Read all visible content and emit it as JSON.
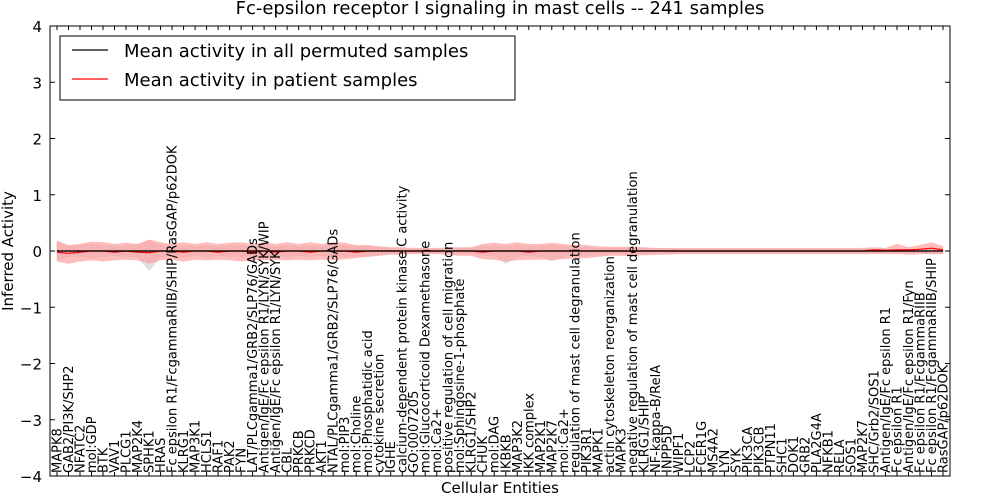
{
  "chart_data": {
    "type": "line",
    "title": "Fc-epsilon receptor I signaling in mast cells -- 241 samples",
    "xlabel": "Cellular Entities",
    "ylabel": "Inferred Activity",
    "ylim": [
      -4,
      4
    ],
    "yticks": [
      "−4",
      "−3",
      "−2",
      "−1",
      "0",
      "1",
      "2",
      "3",
      "4"
    ],
    "legend_placement": "top-left",
    "colors": {
      "all": "#000000",
      "patient": "#ff0000",
      "patient_band": "#ff9999",
      "all_band": "#c8c8c8"
    },
    "categories": [
      "MAPK8",
      "GAB2/PI3K/SHP2",
      "NFATC2",
      "mol:GDP",
      "BTK",
      "VAV1",
      "PLCG1",
      "MAP2K4",
      "SPHK1",
      "HRAS",
      "Fc epsilon R1/FcgammaRIIB/SHIP/RasGAP/p62DOK",
      "KLRG1",
      "MAP3K1",
      "HCLS1",
      "RAF1",
      "PAK2",
      "FYN",
      "LAT/PLCgamma1/GRB2/SLP76/GADs",
      "Antigen/IgE/Fc epsilon R1/LYN/SYK/WIP",
      "Antigen/IgE/Fc epsilon R1/LYN/SYK",
      "CBL",
      "PRKCB",
      "PRKCD",
      "AKT1",
      "NTAL/PLCgamma1/GRB2/SLP76/GADs",
      "mol:PIP3",
      "mol:Choline",
      "mol:Phosphatidic acid",
      "cytokine secretion",
      "IGHE",
      "calcium-dependent protein kinase C activity",
      "GO:0007205",
      "mol:Glucocorticoid Dexamethasone",
      "mol:Ca2+",
      "positive regulation of cell migration",
      "mol:Sphingosine-1-phosphate",
      "KLRG1/SHP2",
      "CHUK",
      "mol:DAG",
      "IKBKB",
      "MAP3K2",
      "IKK complex",
      "MAP2K1",
      "MAP2K7",
      "mol:Ca2+",
      "regulation of mast cell degranulation",
      "PIK3R1",
      "MAPK1",
      "actin cytoskeleton reorganization",
      "MAPK3",
      "negative regulation of mast cell degranulation",
      "KLRG1/SHIP",
      "NF-kappa-B/RelA",
      "INPP5D",
      "WIPF1",
      "LCP2",
      "FCER1G",
      "MS4A2",
      "LYN",
      "SYK",
      "PIK3CA",
      "PIK3CB",
      "PTPN11",
      "SHC1",
      "DOK1",
      "GRB2",
      "PLA2G4A",
      "NFKB1",
      "RELA",
      "SOS1",
      "MAP2K7",
      "SHC/Grb2/SOS1",
      "Antigen/IgE/Fc epsilon R1",
      "Fc epsilon R1",
      "Antigen/IgE/Fc epsilon R1/Fyn",
      "Fc epsilon R1/FcgammaRIIB",
      "Fc epsilon R1/FcgammaRIIB/SHIP",
      "RasGAP/p62DOK"
    ],
    "series": [
      {
        "name": "Mean activity in all permuted samples",
        "values": [
          0.0,
          0.0,
          0.0,
          0.0,
          0.0,
          0.0,
          0.0,
          0.0,
          0.0,
          0.0,
          0.0,
          0.0,
          0.0,
          0.0,
          0.0,
          0.0,
          0.0,
          0.0,
          0.0,
          0.0,
          0.0,
          0.0,
          0.0,
          0.0,
          0.0,
          0.0,
          0.0,
          0.0,
          0.0,
          0.0,
          0.0,
          0.0,
          0.0,
          0.0,
          0.0,
          0.0,
          0.0,
          0.0,
          0.0,
          0.0,
          0.0,
          0.0,
          0.0,
          0.0,
          0.0,
          0.0,
          0.0,
          0.0,
          0.0,
          0.0,
          0.0,
          0.0,
          0.0,
          0.0,
          0.0,
          0.0,
          0.0,
          0.0,
          0.0,
          0.0,
          0.0,
          0.0,
          0.0,
          0.0,
          0.0,
          0.0,
          0.0,
          0.0,
          0.0,
          0.0,
          0.0,
          0.0,
          0.0,
          0.0,
          0.0,
          0.0,
          0.0,
          0.0
        ],
        "upper": [
          0.15,
          0.08,
          0.1,
          0.12,
          0.1,
          0.08,
          0.1,
          0.1,
          0.18,
          0.1,
          0.08,
          0.1,
          0.08,
          0.1,
          0.08,
          0.1,
          0.1,
          0.08,
          0.1,
          0.08,
          0.1,
          0.08,
          0.1,
          0.08,
          0.1,
          0.1,
          0.08,
          0.08,
          0.06,
          0.04,
          0.04,
          0.03,
          0.03,
          0.03,
          0.04,
          0.05,
          0.05,
          0.08,
          0.08,
          0.08,
          0.1,
          0.08,
          0.08,
          0.1,
          0.08,
          0.06,
          0.06,
          0.05,
          0.05,
          0.05,
          0.05,
          0.05,
          0.04,
          0.04,
          0.03,
          0.03,
          0.03,
          0.03,
          0.03,
          0.03,
          0.03,
          0.03,
          0.03,
          0.03,
          0.03,
          0.03,
          0.03,
          0.03,
          0.03,
          0.03,
          0.03,
          0.03,
          0.03,
          0.03,
          0.03,
          0.03,
          0.04,
          0.04
        ],
        "lower": [
          -0.15,
          -0.1,
          -0.1,
          -0.12,
          -0.1,
          -0.08,
          -0.1,
          -0.1,
          -0.35,
          -0.1,
          -0.08,
          -0.1,
          -0.08,
          -0.1,
          -0.08,
          -0.1,
          -0.1,
          -0.08,
          -0.1,
          -0.08,
          -0.1,
          -0.08,
          -0.1,
          -0.08,
          -0.1,
          -0.1,
          -0.08,
          -0.08,
          -0.06,
          -0.04,
          -0.04,
          -0.03,
          -0.03,
          -0.03,
          -0.04,
          -0.05,
          -0.05,
          -0.08,
          -0.08,
          -0.22,
          -0.1,
          -0.08,
          -0.1,
          -0.18,
          -0.1,
          -0.08,
          -0.08,
          -0.06,
          -0.05,
          -0.05,
          -0.05,
          -0.05,
          -0.04,
          -0.04,
          -0.03,
          -0.03,
          -0.03,
          -0.03,
          -0.03,
          -0.03,
          -0.03,
          -0.03,
          -0.03,
          -0.03,
          -0.03,
          -0.03,
          -0.03,
          -0.03,
          -0.03,
          -0.03,
          -0.03,
          -0.03,
          -0.03,
          -0.03,
          -0.03,
          -0.03,
          -0.04,
          -0.04
        ]
      },
      {
        "name": "Mean activity in patient samples",
        "values": [
          -0.02,
          -0.04,
          -0.02,
          0.0,
          0.0,
          -0.02,
          0.0,
          -0.02,
          -0.03,
          0.0,
          0.0,
          -0.02,
          0.0,
          0.0,
          -0.02,
          0.0,
          0.0,
          -0.02,
          0.0,
          -0.02,
          0.0,
          0.0,
          -0.02,
          0.0,
          0.0,
          0.0,
          -0.02,
          0.0,
          0.0,
          0.0,
          0.0,
          0.0,
          0.0,
          0.0,
          0.0,
          0.0,
          0.0,
          -0.02,
          0.0,
          0.0,
          0.0,
          -0.02,
          0.0,
          0.0,
          0.0,
          0.0,
          0.0,
          0.0,
          0.0,
          0.0,
          0.0,
          0.0,
          0.0,
          0.0,
          0.0,
          0.0,
          0.0,
          0.0,
          0.0,
          0.0,
          0.0,
          0.0,
          0.0,
          0.0,
          0.0,
          0.0,
          0.0,
          0.0,
          0.0,
          0.0,
          0.0,
          0.02,
          0.01,
          0.02,
          0.02,
          0.03,
          0.05,
          0.02
        ],
        "upper": [
          0.18,
          0.1,
          0.12,
          0.16,
          0.15,
          0.12,
          0.14,
          0.12,
          0.2,
          0.15,
          0.12,
          0.15,
          0.12,
          0.15,
          0.12,
          0.14,
          0.15,
          0.12,
          0.15,
          0.12,
          0.15,
          0.12,
          0.15,
          0.12,
          0.15,
          0.14,
          0.1,
          0.1,
          0.08,
          0.06,
          0.06,
          0.05,
          0.05,
          0.05,
          0.06,
          0.06,
          0.06,
          0.12,
          0.14,
          0.12,
          0.15,
          0.12,
          0.12,
          0.14,
          0.12,
          0.1,
          0.1,
          0.08,
          0.07,
          0.07,
          0.07,
          0.06,
          0.05,
          0.05,
          0.05,
          0.05,
          0.05,
          0.05,
          0.05,
          0.05,
          0.05,
          0.05,
          0.05,
          0.05,
          0.05,
          0.05,
          0.05,
          0.05,
          0.05,
          0.05,
          0.05,
          0.06,
          0.05,
          0.12,
          0.06,
          0.1,
          0.15,
          0.08
        ],
        "lower": [
          -0.18,
          -0.22,
          -0.18,
          -0.16,
          -0.18,
          -0.16,
          -0.15,
          -0.16,
          -0.22,
          -0.16,
          -0.15,
          -0.18,
          -0.15,
          -0.16,
          -0.15,
          -0.16,
          -0.18,
          -0.16,
          -0.16,
          -0.15,
          -0.16,
          -0.15,
          -0.16,
          -0.15,
          -0.16,
          -0.14,
          -0.12,
          -0.1,
          -0.08,
          -0.06,
          -0.06,
          -0.05,
          -0.05,
          -0.05,
          -0.06,
          -0.08,
          -0.08,
          -0.14,
          -0.15,
          -0.18,
          -0.16,
          -0.15,
          -0.15,
          -0.15,
          -0.14,
          -0.12,
          -0.12,
          -0.1,
          -0.08,
          -0.08,
          -0.08,
          -0.07,
          -0.06,
          -0.06,
          -0.05,
          -0.05,
          -0.05,
          -0.05,
          -0.05,
          -0.05,
          -0.05,
          -0.05,
          -0.05,
          -0.05,
          -0.05,
          -0.05,
          -0.05,
          -0.05,
          -0.05,
          -0.05,
          -0.05,
          -0.05,
          -0.05,
          -0.05,
          -0.06,
          -0.05,
          -0.05,
          -0.05
        ]
      }
    ]
  }
}
